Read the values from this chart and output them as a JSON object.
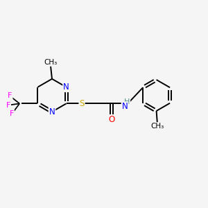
{
  "background_color": "#f5f5f5",
  "bond_color": "#000000",
  "atom_colors": {
    "N": "#0000ff",
    "S": "#ccaa00",
    "O": "#ff0000",
    "F": "#ff00ff",
    "H": "#4a9090",
    "C": "#000000"
  },
  "figsize": [
    3.0,
    3.0
  ],
  "dpi": 100,
  "xlim": [
    0,
    12
  ],
  "ylim": [
    0,
    10
  ]
}
